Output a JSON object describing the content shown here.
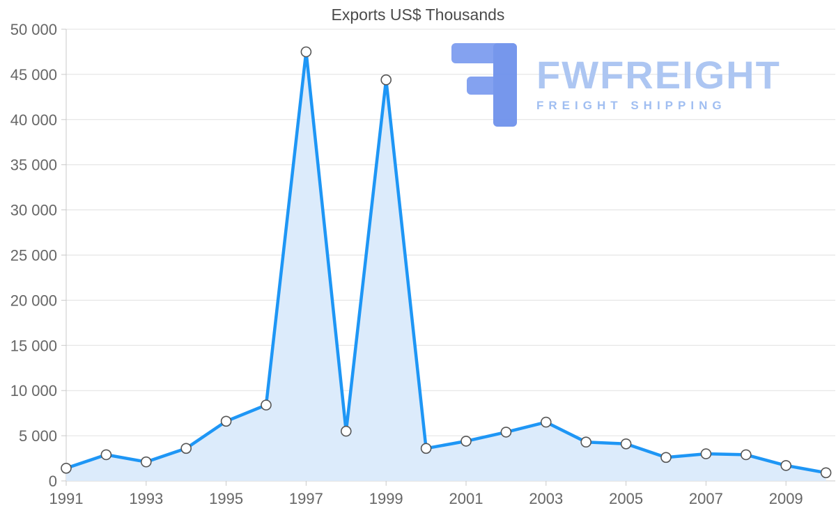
{
  "chart_data": {
    "type": "area",
    "title": "Exports US$ Thousands",
    "xlabel": "",
    "ylabel": "",
    "x": [
      1991,
      1992,
      1993,
      1994,
      1995,
      1996,
      1997,
      1998,
      1999,
      2000,
      2001,
      2002,
      2003,
      2004,
      2005,
      2006,
      2007,
      2008,
      2009,
      2010
    ],
    "values": [
      1400,
      2900,
      2100,
      3600,
      6600,
      8400,
      47500,
      5500,
      44400,
      3600,
      4400,
      5400,
      6500,
      4300,
      4100,
      2600,
      3000,
      2900,
      1700,
      900
    ],
    "ylim": [
      0,
      50000
    ],
    "ytick_values": [
      0,
      5000,
      10000,
      15000,
      20000,
      25000,
      30000,
      35000,
      40000,
      45000,
      50000
    ],
    "ytick_labels": [
      "0",
      "5 000",
      "10 000",
      "15 000",
      "20 000",
      "25 000",
      "30 000",
      "35 000",
      "40 000",
      "45 000",
      "50 000"
    ],
    "xtick_labels": [
      "1991",
      "1993",
      "1995",
      "1997",
      "1999",
      "2001",
      "2003",
      "2005",
      "2007",
      "2009"
    ],
    "grid": true,
    "legend_position": "none",
    "colors": {
      "line": "#1e96f5",
      "fill": "#dcebfb",
      "marker_fill": "#ffffff",
      "marker_stroke": "#555555",
      "grid": "#e0e0e0",
      "axis": "#c9c9c9",
      "tick_text": "#666666",
      "title_text": "#4a4a4a"
    }
  },
  "watermark": {
    "brand": "FWFREIGHT",
    "tagline": "FREIGHT SHIPPING",
    "logo_color": "#7e9ef0",
    "logo_color_dark": "#6f92ec"
  }
}
